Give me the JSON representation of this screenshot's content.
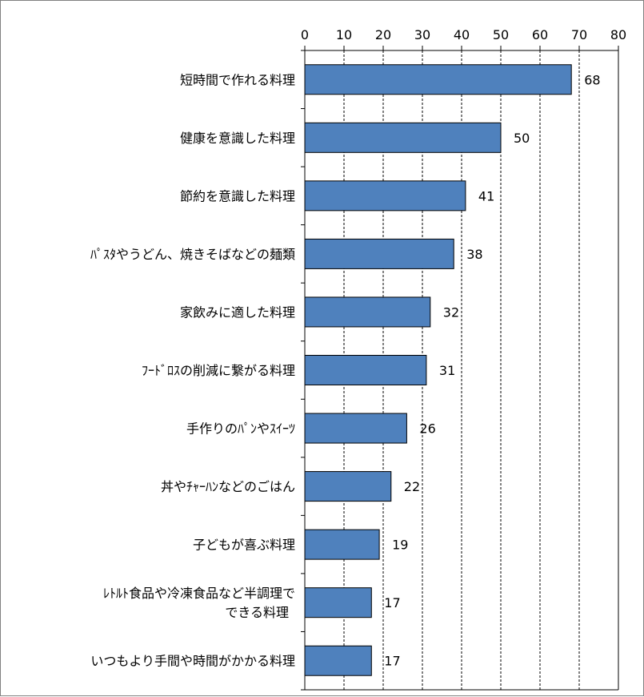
{
  "chart_data": {
    "type": "bar",
    "orientation": "horizontal",
    "categories": [
      "短時間で作れる料理",
      "健康を意識した料理",
      "節約を意識した料理",
      "ﾊﾟｽﾀやうどん、焼きそばなどの麺類",
      "家飲みに適した料理",
      "ﾌｰﾄﾞﾛｽの削減に繋がる料理",
      "手作りのﾊﾟﾝやｽｲｰﾂ",
      "丼やﾁｬｰﾊﾝなどのごはん",
      "子どもが喜ぶ料理",
      "ﾚﾄﾙﾄ食品や冷凍食品など半調理で\nできる料理",
      "いつもより手間や時間がかかる料理"
    ],
    "values": [
      68,
      50,
      41,
      38,
      32,
      31,
      26,
      22,
      19,
      17,
      17
    ],
    "xlim": [
      0,
      80
    ],
    "x_ticks": [
      0,
      10,
      20,
      30,
      40,
      50,
      60,
      70,
      80
    ],
    "x_axis_position": "top",
    "grid": "vertical dashed",
    "bar_color": "#4f81bd",
    "bar_border_color": "#000000",
    "data_labels": true,
    "legend": "none",
    "title": "",
    "xlabel": "",
    "ylabel": ""
  }
}
